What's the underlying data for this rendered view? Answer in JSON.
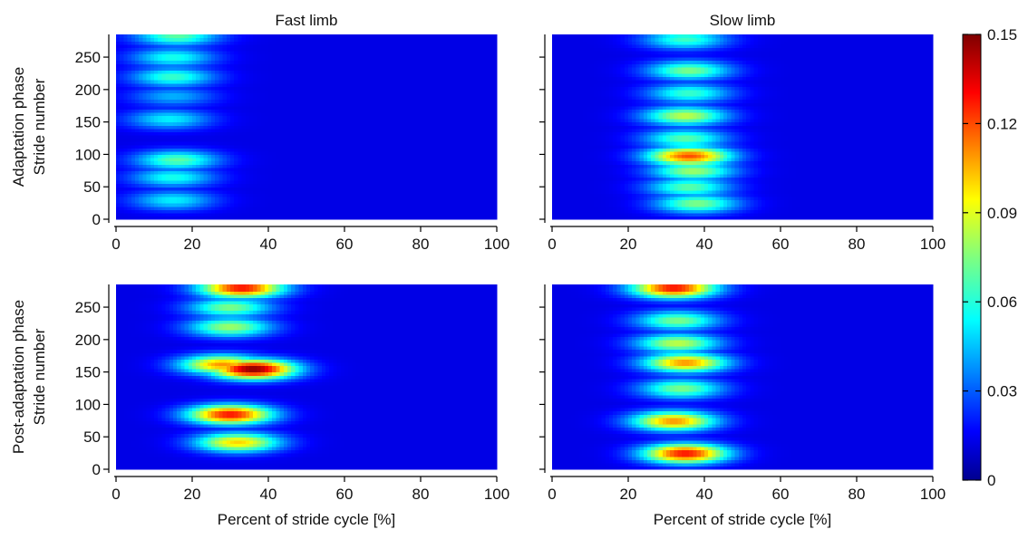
{
  "chart_data": [
    {
      "type": "heatmap",
      "panel": "adaptation-fast",
      "title": "Fast limb",
      "ylabel": "Adaptation phase Stride number",
      "xlabel": "",
      "xlim": [
        0,
        100
      ],
      "ylim": [
        0,
        285
      ],
      "x_ticks": [
        0,
        20,
        40,
        60,
        80,
        100
      ],
      "y_ticks": [
        0,
        50,
        100,
        150,
        200,
        250
      ],
      "background_value": 0.015,
      "hotspots": [
        {
          "x": 15,
          "y": 30,
          "value": 0.055
        },
        {
          "x": 15,
          "y": 65,
          "value": 0.06
        },
        {
          "x": 16,
          "y": 92,
          "value": 0.07
        },
        {
          "x": 14,
          "y": 155,
          "value": 0.055
        },
        {
          "x": 15,
          "y": 190,
          "value": 0.045
        },
        {
          "x": 15,
          "y": 220,
          "value": 0.065
        },
        {
          "x": 15,
          "y": 250,
          "value": 0.06
        },
        {
          "x": 16,
          "y": 283,
          "value": 0.07
        }
      ]
    },
    {
      "type": "heatmap",
      "panel": "adaptation-slow",
      "title": "Slow limb",
      "ylabel": "",
      "xlabel": "",
      "xlim": [
        0,
        100
      ],
      "ylim": [
        0,
        285
      ],
      "x_ticks": [
        0,
        20,
        40,
        60,
        80,
        100
      ],
      "y_ticks": [
        0,
        50,
        100,
        150,
        200,
        250
      ],
      "background_value": 0.015,
      "hotspots": [
        {
          "x": 38,
          "y": 25,
          "value": 0.075
        },
        {
          "x": 36,
          "y": 50,
          "value": 0.07
        },
        {
          "x": 37,
          "y": 75,
          "value": 0.08
        },
        {
          "x": 36,
          "y": 98,
          "value": 0.12
        },
        {
          "x": 35,
          "y": 125,
          "value": 0.07
        },
        {
          "x": 35,
          "y": 160,
          "value": 0.085
        },
        {
          "x": 36,
          "y": 195,
          "value": 0.065
        },
        {
          "x": 36,
          "y": 230,
          "value": 0.075
        },
        {
          "x": 35,
          "y": 278,
          "value": 0.065
        }
      ]
    },
    {
      "type": "heatmap",
      "panel": "post-adaptation-fast",
      "title": "",
      "ylabel": "Post-adaptation phase Stride number",
      "xlabel": "Percent of stride cycle [%]",
      "xlim": [
        0,
        100
      ],
      "ylim": [
        0,
        285
      ],
      "x_ticks": [
        0,
        20,
        40,
        60,
        80,
        100
      ],
      "y_ticks": [
        0,
        50,
        100,
        150,
        200,
        250
      ],
      "background_value": 0.015,
      "hotspots": [
        {
          "x": 32,
          "y": 42,
          "value": 0.1
        },
        {
          "x": 30,
          "y": 85,
          "value": 0.13
        },
        {
          "x": 36,
          "y": 155,
          "value": 0.15
        },
        {
          "x": 28,
          "y": 162,
          "value": 0.11
        },
        {
          "x": 30,
          "y": 220,
          "value": 0.08
        },
        {
          "x": 30,
          "y": 250,
          "value": 0.075
        },
        {
          "x": 33,
          "y": 280,
          "value": 0.13
        }
      ]
    },
    {
      "type": "heatmap",
      "panel": "post-adaptation-slow",
      "title": "",
      "ylabel": "",
      "xlabel": "Percent of stride cycle [%]",
      "xlim": [
        0,
        100
      ],
      "ylim": [
        0,
        285
      ],
      "x_ticks": [
        0,
        20,
        40,
        60,
        80,
        100
      ],
      "y_ticks": [
        0,
        50,
        100,
        150,
        200,
        250
      ],
      "background_value": 0.015,
      "hotspots": [
        {
          "x": 35,
          "y": 25,
          "value": 0.13
        },
        {
          "x": 32,
          "y": 75,
          "value": 0.11
        },
        {
          "x": 34,
          "y": 125,
          "value": 0.075
        },
        {
          "x": 35,
          "y": 165,
          "value": 0.11
        },
        {
          "x": 33,
          "y": 195,
          "value": 0.085
        },
        {
          "x": 33,
          "y": 230,
          "value": 0.075
        },
        {
          "x": 32,
          "y": 280,
          "value": 0.13
        }
      ]
    }
  ],
  "colorbar": {
    "colormap": "jet",
    "range": [
      0,
      0.15
    ],
    "ticks": [
      "0",
      "0.03",
      "0.06",
      "0.09",
      "0.12",
      "0.15"
    ]
  }
}
